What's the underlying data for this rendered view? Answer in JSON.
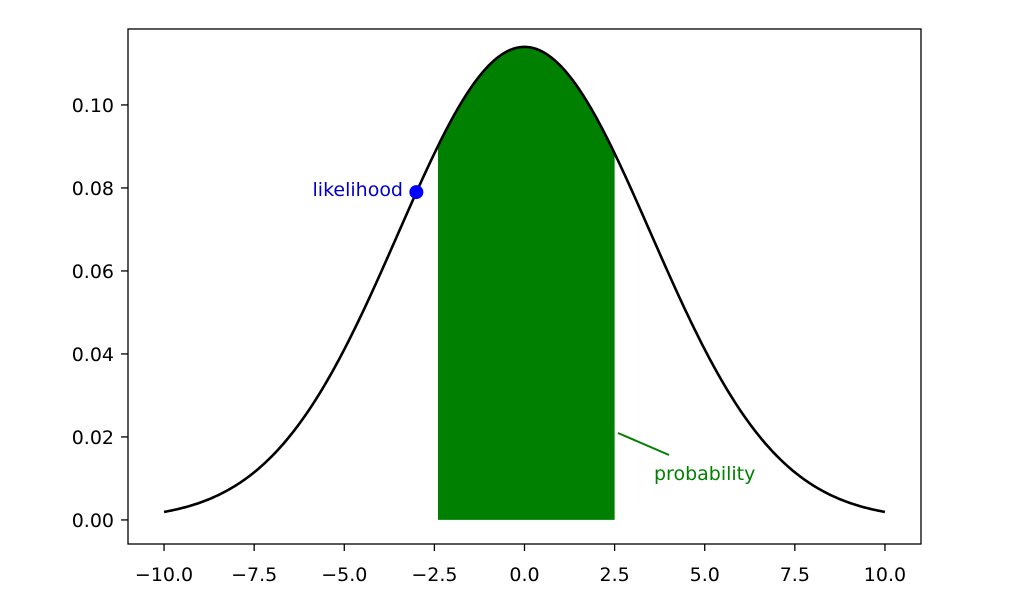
{
  "chart_data": {
    "type": "line",
    "xlim": [
      -11,
      11
    ],
    "ylim": [
      -0.0058,
      0.1183
    ],
    "x_ticks": [
      -10.0,
      -7.5,
      -5.0,
      -2.5,
      0.0,
      2.5,
      5.0,
      7.5,
      10.0
    ],
    "x_tick_labels": [
      "−10.0",
      "−7.5",
      "−5.0",
      "−2.5",
      "0.0",
      "2.5",
      "5.0",
      "7.5",
      "10.0"
    ],
    "y_ticks": [
      0.0,
      0.02,
      0.04,
      0.06,
      0.08,
      0.1
    ],
    "y_tick_labels": [
      "0.00",
      "0.02",
      "0.04",
      "0.06",
      "0.08",
      "0.10"
    ],
    "curve": {
      "distribution": "normal",
      "mean": 0,
      "std": 3.5,
      "x_range": [
        -10,
        10
      ],
      "color": "#000000"
    },
    "shaded_region": {
      "x_range": [
        -2.4,
        2.5
      ],
      "color": "#008000"
    },
    "point": {
      "x": -3.0,
      "y": 0.079,
      "color": "#0000ff"
    },
    "annotations": {
      "likelihood": {
        "text": "likelihood",
        "color": "#0000cc"
      },
      "probability": {
        "text": "probability",
        "color": "#008000"
      }
    },
    "grid": false
  }
}
